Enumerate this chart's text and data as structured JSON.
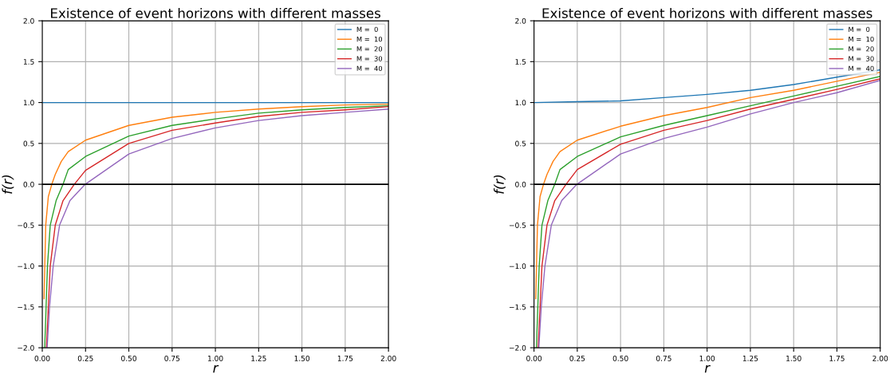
{
  "chart_data": [
    {
      "type": "line",
      "title": "Existence of event horizons with different masses",
      "xlabel": "r",
      "ylabel": "f(r)",
      "xlim": [
        0,
        2
      ],
      "ylim": [
        -2,
        2
      ],
      "xticks": [
        {
          "value": 0,
          "label": "0.00"
        },
        {
          "value": 0.25,
          "label": "0.25"
        },
        {
          "value": 0.5,
          "label": "0.50"
        },
        {
          "value": 0.75,
          "label": "0.75"
        },
        {
          "value": 1,
          "label": "1.00"
        },
        {
          "value": 1.25,
          "label": "1.25"
        },
        {
          "value": 1.5,
          "label": "1.50"
        },
        {
          "value": 1.75,
          "label": "1.75"
        },
        {
          "value": 2,
          "label": "2.00"
        }
      ],
      "yticks": [
        {
          "value": -2,
          "label": "−2.0"
        },
        {
          "value": -1.5,
          "label": "−1.5"
        },
        {
          "value": -1,
          "label": "−1.0"
        },
        {
          "value": -0.5,
          "label": "−0.5"
        },
        {
          "value": 0,
          "label": "0.0"
        },
        {
          "value": 0.5,
          "label": "0.5"
        },
        {
          "value": 1,
          "label": "1.0"
        },
        {
          "value": 1.5,
          "label": "1.5"
        },
        {
          "value": 2,
          "label": "2.0"
        }
      ],
      "grid": true,
      "legend": "top right",
      "ref_lines": [
        {
          "axis": "y",
          "value": 0,
          "color": "#000000"
        }
      ],
      "series": [
        {
          "name": "M =  0",
          "color": "#1f77b4",
          "x": [
            0,
            2
          ],
          "values": [
            1,
            1
          ]
        },
        {
          "name": "M =  10",
          "color": "#ff7f0e",
          "x": [
            0.01,
            0.02,
            0.035,
            0.055,
            0.075,
            0.11,
            0.15,
            0.25,
            0.5,
            0.75,
            1.0,
            1.25,
            1.5,
            1.75,
            2.0
          ],
          "values": [
            -1.4,
            -0.5,
            -0.15,
            0,
            0.12,
            0.28,
            0.4,
            0.54,
            0.72,
            0.82,
            0.88,
            0.92,
            0.95,
            0.97,
            0.98
          ]
        },
        {
          "name": "M =  20",
          "color": "#2ca02c",
          "x": [
            0.014,
            0.03,
            0.046,
            0.08,
            0.12,
            0.15,
            0.25,
            0.5,
            0.75,
            1.0,
            1.25,
            1.5,
            1.75,
            2.0
          ],
          "values": [
            -2,
            -1,
            -0.5,
            -0.2,
            0,
            0.18,
            0.34,
            0.59,
            0.72,
            0.8,
            0.87,
            0.91,
            0.94,
            0.96
          ]
        },
        {
          "name": "M =  30",
          "color": "#d62728",
          "x": [
            0.024,
            0.046,
            0.075,
            0.12,
            0.185,
            0.25,
            0.5,
            0.75,
            1.0,
            1.25,
            1.5,
            1.75,
            2.0
          ],
          "values": [
            -2,
            -1,
            -0.5,
            -0.2,
            0,
            0.17,
            0.5,
            0.66,
            0.75,
            0.83,
            0.88,
            0.91,
            0.95
          ]
        },
        {
          "name": "M =  40",
          "color": "#9467bd",
          "x": [
            0.028,
            0.042,
            0.063,
            0.1,
            0.16,
            0.248,
            0.5,
            0.75,
            1.0,
            1.25,
            1.5,
            1.75,
            2.0
          ],
          "values": [
            -2,
            -1.5,
            -1,
            -0.5,
            -0.2,
            0,
            0.37,
            0.56,
            0.69,
            0.78,
            0.84,
            0.88,
            0.92
          ]
        }
      ]
    },
    {
      "type": "line",
      "title": "Existence of event horizons with different masses",
      "xlabel": "r",
      "ylabel": "f(r)",
      "xlim": [
        0,
        2
      ],
      "ylim": [
        -2,
        2
      ],
      "xticks": [
        {
          "value": 0,
          "label": "0.00"
        },
        {
          "value": 0.25,
          "label": "0.25"
        },
        {
          "value": 0.5,
          "label": "0.50"
        },
        {
          "value": 0.75,
          "label": "0.75"
        },
        {
          "value": 1,
          "label": "1.00"
        },
        {
          "value": 1.25,
          "label": "1.25"
        },
        {
          "value": 1.5,
          "label": "1.50"
        },
        {
          "value": 1.75,
          "label": "1.75"
        },
        {
          "value": 2,
          "label": "2.00"
        }
      ],
      "yticks": [
        {
          "value": -2,
          "label": "−2.0"
        },
        {
          "value": -1.5,
          "label": "−1.5"
        },
        {
          "value": -1,
          "label": "−1.0"
        },
        {
          "value": -0.5,
          "label": "−0.5"
        },
        {
          "value": 0,
          "label": "0.0"
        },
        {
          "value": 0.5,
          "label": "0.5"
        },
        {
          "value": 1,
          "label": "1.0"
        },
        {
          "value": 1.5,
          "label": "1.5"
        },
        {
          "value": 2,
          "label": "2.0"
        }
      ],
      "grid": true,
      "legend": "top right",
      "ref_lines": [
        {
          "axis": "y",
          "value": 0,
          "color": "#000000"
        }
      ],
      "series": [
        {
          "name": "M =  0",
          "color": "#1f77b4",
          "x": [
            0,
            0.25,
            0.5,
            0.75,
            1.0,
            1.25,
            1.5,
            1.75,
            2.0
          ],
          "values": [
            1,
            1.01,
            1.02,
            1.06,
            1.1,
            1.15,
            1.22,
            1.31,
            1.4
          ]
        },
        {
          "name": "M =  10",
          "color": "#ff7f0e",
          "x": [
            0.01,
            0.02,
            0.035,
            0.055,
            0.075,
            0.11,
            0.15,
            0.25,
            0.5,
            0.75,
            1.0,
            1.25,
            1.5,
            1.75,
            2.0
          ],
          "values": [
            -1.4,
            -0.5,
            -0.15,
            0,
            0.12,
            0.28,
            0.4,
            0.54,
            0.71,
            0.84,
            0.94,
            1.06,
            1.15,
            1.26,
            1.37
          ]
        },
        {
          "name": "M =  20",
          "color": "#2ca02c",
          "x": [
            0.014,
            0.03,
            0.046,
            0.08,
            0.12,
            0.15,
            0.25,
            0.5,
            0.75,
            1.0,
            1.25,
            1.5,
            1.75,
            2.0
          ],
          "values": [
            -2,
            -1,
            -0.5,
            -0.2,
            0,
            0.18,
            0.34,
            0.58,
            0.72,
            0.84,
            0.96,
            1.08,
            1.2,
            1.32
          ]
        },
        {
          "name": "M =  30",
          "color": "#d62728",
          "x": [
            0.024,
            0.046,
            0.075,
            0.12,
            0.185,
            0.25,
            0.5,
            0.75,
            1.0,
            1.25,
            1.5,
            1.75,
            2.0
          ],
          "values": [
            -2,
            -1,
            -0.5,
            -0.2,
            0,
            0.18,
            0.49,
            0.66,
            0.78,
            0.92,
            1.04,
            1.16,
            1.29
          ]
        },
        {
          "name": "M =  40",
          "color": "#9467bd",
          "x": [
            0.028,
            0.042,
            0.063,
            0.1,
            0.16,
            0.248,
            0.5,
            0.75,
            1.0,
            1.25,
            1.5,
            1.75,
            2.0
          ],
          "values": [
            -2,
            -1.5,
            -1,
            -0.5,
            -0.2,
            0,
            0.37,
            0.56,
            0.7,
            0.86,
            1.0,
            1.12,
            1.27
          ]
        }
      ]
    }
  ]
}
